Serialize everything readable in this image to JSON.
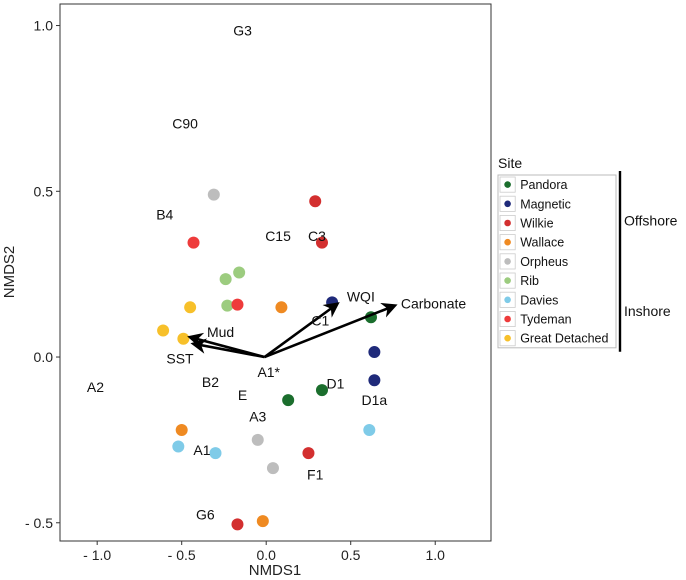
{
  "chart_data": {
    "type": "scatter",
    "title": "",
    "xlabel": "NMDS1",
    "ylabel": "NMDS2",
    "xlim": [
      -1.22,
      1.33
    ],
    "ylim": [
      -0.555,
      1.065
    ],
    "xticks": [
      {
        "value": -1.0,
        "label": "- 1.0"
      },
      {
        "value": -0.5,
        "label": "- 0.5"
      },
      {
        "value": 0.0,
        "label": "0.0"
      },
      {
        "value": 0.5,
        "label": "0.5"
      },
      {
        "value": 1.0,
        "label": "1.0"
      }
    ],
    "yticks": [
      {
        "value": 1.0,
        "label": "1.0"
      },
      {
        "value": 0.5,
        "label": "0.5"
      },
      {
        "value": 0.0,
        "label": "0.0"
      },
      {
        "value": -0.5,
        "label": "- 0.5"
      }
    ],
    "grid": false,
    "series": [
      {
        "name": "Pandora",
        "color": "#1b6e2d",
        "points": [
          [
            0.62,
            0.12
          ],
          [
            0.33,
            -0.1
          ],
          [
            0.13,
            -0.13
          ]
        ]
      },
      {
        "name": "Magnetic",
        "color": "#1f2a7a",
        "points": [
          [
            0.39,
            0.165
          ],
          [
            0.64,
            0.015
          ],
          [
            0.64,
            -0.07
          ]
        ]
      },
      {
        "name": "Wilkie",
        "color": "#d32f2f",
        "points": [
          [
            0.29,
            0.47
          ],
          [
            0.33,
            0.345
          ],
          [
            0.25,
            -0.29
          ],
          [
            -0.17,
            -0.505
          ]
        ]
      },
      {
        "name": "Wallace",
        "color": "#ef8a22",
        "points": [
          [
            0.09,
            0.15
          ],
          [
            -0.5,
            -0.22
          ],
          [
            -0.02,
            -0.495
          ]
        ]
      },
      {
        "name": "Orpheus",
        "color": "#bdbdbd",
        "points": [
          [
            -0.31,
            0.49
          ],
          [
            -0.05,
            -0.25
          ],
          [
            0.04,
            -0.335
          ]
        ]
      },
      {
        "name": "Rib",
        "color": "#9ccc7f",
        "points": [
          [
            -0.16,
            0.255
          ],
          [
            -0.24,
            0.235
          ],
          [
            -0.23,
            0.155
          ]
        ]
      },
      {
        "name": "Davies",
        "color": "#7fcbe8",
        "points": [
          [
            -0.52,
            -0.27
          ],
          [
            -0.3,
            -0.29
          ],
          [
            0.61,
            -0.22
          ]
        ]
      },
      {
        "name": "Tydeman",
        "color": "#ee3b3b",
        "points": [
          [
            -0.43,
            0.345
          ],
          [
            -0.17,
            0.158
          ]
        ]
      },
      {
        "name": "Great Detached",
        "color": "#f7c02a",
        "points": [
          [
            -0.45,
            0.15
          ],
          [
            -0.61,
            0.08
          ],
          [
            -0.49,
            0.055
          ]
        ]
      }
    ],
    "vectors": [
      {
        "label": "Carbonate",
        "x": 0.76,
        "y": 0.155
      },
      {
        "label": "WQI",
        "x": 0.42,
        "y": 0.16
      },
      {
        "label": "Mud",
        "x": -0.45,
        "y": 0.06
      },
      {
        "label": "SST",
        "x": -0.43,
        "y": 0.04
      }
    ],
    "vector_origin": [
      -0.01,
      0.0
    ],
    "annotations": [
      {
        "text": "G3",
        "x": -0.14,
        "y": 0.985
      },
      {
        "text": "C90",
        "x": -0.48,
        "y": 0.705
      },
      {
        "text": "B4",
        "x": -0.6,
        "y": 0.43
      },
      {
        "text": "C15",
        "x": 0.07,
        "y": 0.365
      },
      {
        "text": "C3",
        "x": 0.3,
        "y": 0.365
      },
      {
        "text": "WQI",
        "x": 0.56,
        "y": 0.182
      },
      {
        "text": "Carbonate",
        "x": 0.99,
        "y": 0.162
      },
      {
        "text": "C1",
        "x": 0.32,
        "y": 0.11
      },
      {
        "text": "Mud",
        "x": -0.27,
        "y": 0.075
      },
      {
        "text": "SST",
        "x": -0.51,
        "y": -0.005
      },
      {
        "text": "A1*",
        "x": 0.015,
        "y": -0.045
      },
      {
        "text": "B2",
        "x": -0.33,
        "y": -0.075
      },
      {
        "text": "A2",
        "x": -1.01,
        "y": -0.09
      },
      {
        "text": "E",
        "x": -0.14,
        "y": -0.115
      },
      {
        "text": "D1",
        "x": 0.41,
        "y": -0.08
      },
      {
        "text": "D1a",
        "x": 0.64,
        "y": -0.13
      },
      {
        "text": "A3",
        "x": -0.05,
        "y": -0.18
      },
      {
        "text": "A1",
        "x": -0.38,
        "y": -0.28
      },
      {
        "text": "F1",
        "x": 0.29,
        "y": -0.355
      },
      {
        "text": "G6",
        "x": -0.36,
        "y": -0.475
      }
    ],
    "legend": {
      "title": "Site",
      "position": "right",
      "groups": [
        {
          "label": "Offshore",
          "members": [
            "Pandora",
            "Magnetic",
            "Wilkie",
            "Wallace",
            "Orpheus"
          ]
        },
        {
          "label": "Inshore",
          "members": [
            "Rib",
            "Davies",
            "Tydeman",
            "Great Detached"
          ]
        }
      ]
    }
  }
}
